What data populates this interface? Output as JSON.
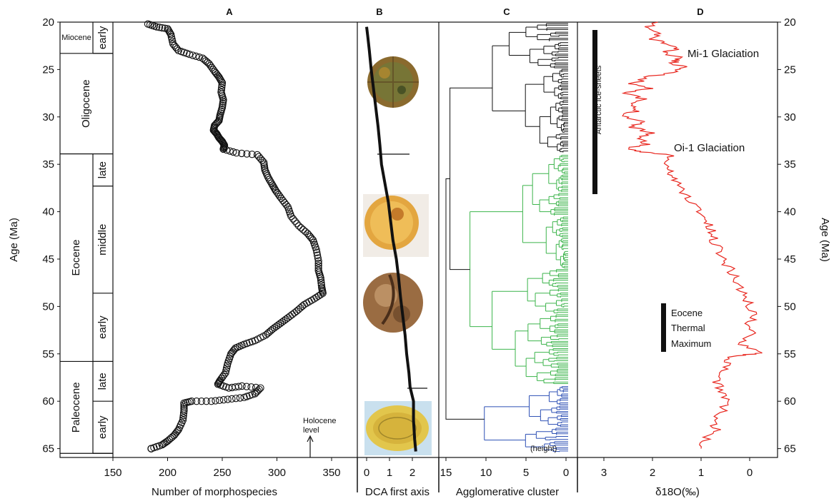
{
  "panels": {
    "a": "A",
    "b": "B",
    "c": "C",
    "d": "D"
  },
  "age_axis": {
    "label": "Age (Ma)",
    "ticks": [
      20,
      25,
      30,
      35,
      40,
      45,
      50,
      55,
      60,
      65
    ],
    "range": [
      20,
      65
    ]
  },
  "timescale": {
    "epochs": [
      {
        "name": "Miocene",
        "from": 20,
        "to": 23.3,
        "sub": [
          {
            "name": "early",
            "from": 20,
            "to": 23.3
          }
        ]
      },
      {
        "name": "Oligocene",
        "from": 23.3,
        "to": 33.9,
        "sub": []
      },
      {
        "name": "Eocene",
        "from": 33.9,
        "to": 55.8,
        "sub": [
          {
            "name": "late",
            "from": 33.9,
            "to": 37.3
          },
          {
            "name": "middle",
            "from": 37.3,
            "to": 48.6
          },
          {
            "name": "early",
            "from": 48.6,
            "to": 55.8
          }
        ]
      },
      {
        "name": "Paleocene",
        "from": 55.8,
        "to": 65.5,
        "sub": [
          {
            "name": "late",
            "from": 55.8,
            "to": 60.0
          },
          {
            "name": "early",
            "from": 60.0,
            "to": 65.5
          }
        ]
      }
    ]
  },
  "chart_data": [
    {
      "type": "scatter",
      "panel": "A",
      "xlabel": "Number of morphospecies",
      "ylabel": "Age (Ma)",
      "xlim": [
        150,
        360
      ],
      "ylim": [
        20,
        65.5
      ],
      "xticks": [
        150,
        200,
        250,
        300,
        350
      ],
      "annotation": {
        "text": [
          "Holocene",
          "level"
        ],
        "x": 324
      },
      "points": [
        [
          182,
          20.2
        ],
        [
          190,
          20.5
        ],
        [
          200,
          20.7
        ],
        [
          203,
          21.3
        ],
        [
          205,
          22.3
        ],
        [
          210,
          23.0
        ],
        [
          220,
          23.4
        ],
        [
          232,
          23.8
        ],
        [
          238,
          24.4
        ],
        [
          243,
          25.2
        ],
        [
          247,
          25.8
        ],
        [
          250,
          26.4
        ],
        [
          249,
          27.4
        ],
        [
          251,
          28.2
        ],
        [
          250,
          29.0
        ],
        [
          248,
          29.8
        ],
        [
          247,
          30.4
        ],
        [
          243,
          30.9
        ],
        [
          242,
          31.4
        ],
        [
          245,
          31.8
        ],
        [
          247,
          32.2
        ],
        [
          250,
          32.6
        ],
        [
          252,
          33.0
        ],
        [
          251,
          33.4
        ],
        [
          263,
          33.8
        ],
        [
          282,
          34.0
        ],
        [
          288,
          34.8
        ],
        [
          289,
          35.6
        ],
        [
          292,
          36.4
        ],
        [
          296,
          37.2
        ],
        [
          299,
          37.8
        ],
        [
          304,
          38.6
        ],
        [
          310,
          39.5
        ],
        [
          313,
          40.5
        ],
        [
          320,
          41.5
        ],
        [
          328,
          42.3
        ],
        [
          333,
          43.0
        ],
        [
          336,
          44.0
        ],
        [
          338,
          45.2
        ],
        [
          338,
          46.2
        ],
        [
          340,
          47.0
        ],
        [
          341,
          48.0
        ],
        [
          342,
          48.6
        ],
        [
          334,
          49.2
        ],
        [
          325,
          49.8
        ],
        [
          318,
          50.5
        ],
        [
          310,
          51.2
        ],
        [
          303,
          51.8
        ],
        [
          296,
          52.4
        ],
        [
          290,
          53.0
        ],
        [
          280,
          53.6
        ],
        [
          270,
          54.0
        ],
        [
          262,
          54.4
        ],
        [
          258,
          55.0
        ],
        [
          255,
          56.0
        ],
        [
          253,
          57.0
        ],
        [
          248,
          57.8
        ],
        [
          246,
          58.2
        ],
        [
          256,
          58.6
        ],
        [
          268,
          58.4
        ],
        [
          285,
          58.6
        ],
        [
          280,
          59.2
        ],
        [
          270,
          59.6
        ],
        [
          255,
          59.8
        ],
        [
          240,
          60.0
        ],
        [
          222,
          60.0
        ],
        [
          215,
          60.2
        ],
        [
          215,
          61.0
        ],
        [
          214,
          62.0
        ],
        [
          210,
          63.0
        ],
        [
          206,
          63.6
        ],
        [
          200,
          64.2
        ],
        [
          195,
          64.6
        ],
        [
          185,
          65.0
        ]
      ]
    },
    {
      "type": "line",
      "panel": "B",
      "xlabel": "DCA first axis",
      "xlim": [
        -0.2,
        2.6
      ],
      "xticks": [
        0,
        1,
        2
      ],
      "series": [
        {
          "points": [
            [
              0,
              20.5
            ],
            [
              0.05,
              21.5
            ],
            [
              0.12,
              23.0
            ],
            [
              0.2,
              25.0
            ],
            [
              0.3,
              27.0
            ],
            [
              0.4,
              29.0
            ],
            [
              0.5,
              31.0
            ],
            [
              0.58,
              33.0
            ],
            [
              0.65,
              35.0
            ],
            [
              0.8,
              37.0
            ],
            [
              0.95,
              39.0
            ],
            [
              1.05,
              41.0
            ],
            [
              1.15,
              43.0
            ],
            [
              1.3,
              45.0
            ],
            [
              1.4,
              47.0
            ],
            [
              1.48,
              49.0
            ],
            [
              1.58,
              51.0
            ],
            [
              1.68,
              53.0
            ],
            [
              1.75,
              55.0
            ],
            [
              1.85,
              57.0
            ],
            [
              1.9,
              58.5
            ],
            [
              2.05,
              60.0
            ],
            [
              2.05,
              62.0
            ],
            [
              2.1,
              64.0
            ],
            [
              2.15,
              65.3
            ]
          ]
        }
      ]
    },
    {
      "type": "dendrogram",
      "panel": "C",
      "xlabel": "Agglomerative cluster",
      "x_unit_label": "(height)",
      "xlim": [
        16.5,
        -0.2
      ],
      "xticks": [
        15,
        10,
        5,
        0
      ],
      "clusters": [
        {
          "name": "cluster-1",
          "color": "#111111",
          "from": 20.0,
          "to": 33.9
        },
        {
          "name": "cluster-2",
          "color": "#3cb44b",
          "from": 33.9,
          "to": 58.3
        },
        {
          "name": "cluster-3",
          "color": "#2c4fb4",
          "from": 58.3,
          "to": 65.5
        }
      ]
    },
    {
      "type": "line",
      "panel": "D",
      "xlabel": "δ18O(‰)",
      "xlim": [
        3.3,
        -0.4
      ],
      "xticks": [
        3,
        2,
        1,
        0
      ],
      "series": [
        {
          "color": "#e8261e",
          "points": [
            [
              2.0,
              20.0
            ],
            [
              2.1,
              20.6
            ],
            [
              1.9,
              21.2
            ],
            [
              2.0,
              21.8
            ],
            [
              1.7,
              22.3
            ],
            [
              1.5,
              22.8
            ],
            [
              1.8,
              23.2
            ],
            [
              1.4,
              23.8
            ],
            [
              1.6,
              24.3
            ],
            [
              1.3,
              24.8
            ],
            [
              1.5,
              25.2
            ],
            [
              2.1,
              25.8
            ],
            [
              2.4,
              26.5
            ],
            [
              2.0,
              27.0
            ],
            [
              2.6,
              27.5
            ],
            [
              2.2,
              28.1
            ],
            [
              2.5,
              28.7
            ],
            [
              2.3,
              29.3
            ],
            [
              2.6,
              29.9
            ],
            [
              2.2,
              30.5
            ],
            [
              2.4,
              31.1
            ],
            [
              2.0,
              31.7
            ],
            [
              2.3,
              32.3
            ],
            [
              2.1,
              32.9
            ],
            [
              2.6,
              33.4
            ],
            [
              2.2,
              33.7
            ],
            [
              1.6,
              34.0
            ],
            [
              1.75,
              34.6
            ],
            [
              1.7,
              35.4
            ],
            [
              1.6,
              36.2
            ],
            [
              1.5,
              37.0
            ],
            [
              1.35,
              38.0
            ],
            [
              1.2,
              39.0
            ],
            [
              1.0,
              40.0
            ],
            [
              0.9,
              41.0
            ],
            [
              0.8,
              42.0
            ],
            [
              0.75,
              43.0
            ],
            [
              0.6,
              44.0
            ],
            [
              0.55,
              45.0
            ],
            [
              0.4,
              46.0
            ],
            [
              0.3,
              47.0
            ],
            [
              0.2,
              48.0
            ],
            [
              0.1,
              49.0
            ],
            [
              0.0,
              50.0
            ],
            [
              -0.1,
              51.0
            ],
            [
              0.05,
              52.0
            ],
            [
              -0.05,
              53.0
            ],
            [
              0.15,
              54.0
            ],
            [
              -0.3,
              54.9
            ],
            [
              0.3,
              55.2
            ],
            [
              0.5,
              56.0
            ],
            [
              0.6,
              57.0
            ],
            [
              0.7,
              58.0
            ],
            [
              0.55,
              59.0
            ],
            [
              0.45,
              60.0
            ],
            [
              0.55,
              61.0
            ],
            [
              0.8,
              62.0
            ],
            [
              0.7,
              63.0
            ],
            [
              0.9,
              64.0
            ],
            [
              1.0,
              65.0
            ]
          ]
        }
      ],
      "annotations": [
        {
          "text": "Mi-1 Glaciation",
          "age": 23.8
        },
        {
          "text": "Oi-1 Glaciation",
          "age": 33.0
        },
        {
          "text": "Antarctic Ice-sheets",
          "from": 21.0,
          "to": 38.0
        },
        {
          "lines": [
            "Eocene",
            "Thermal",
            "Maximum"
          ],
          "from": 49.0,
          "to": 55.0
        }
      ]
    }
  ]
}
